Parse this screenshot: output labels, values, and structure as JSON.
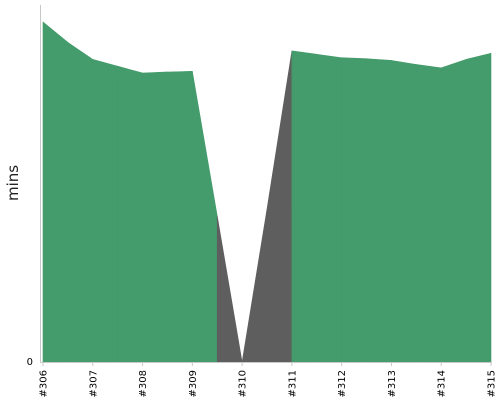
{
  "chart_data": {
    "type": "area",
    "x": [
      "#306",
      "#307",
      "#308",
      "#309",
      "#310",
      "#311",
      "#312",
      "#313",
      "#314",
      "#315"
    ],
    "series": [
      {
        "x": [
          0,
          0.5,
          1,
          1.5,
          2,
          2.5,
          3,
          3.5,
          4,
          4.5,
          5,
          5.5,
          6,
          6.5,
          7,
          7.5,
          8,
          8.5,
          9
        ],
        "values": [
          100,
          94,
          89,
          87,
          85,
          85.3,
          85.5,
          43,
          0,
          45,
          91.5,
          90.5,
          89.5,
          89.2,
          88.7,
          87.5,
          86.5,
          89,
          90.8
        ],
        "colors": [
          "#449b6c",
          "#449b6c",
          "#449b6c",
          "#449b6c",
          "#449b6c",
          "#449b6c",
          "#449b6c",
          "#5e5e5e",
          "#5e5e5e",
          "#5e5e5e",
          "#449b6c",
          "#449b6c",
          "#449b6c",
          "#449b6c",
          "#449b6c",
          "#449b6c",
          "#449b6c",
          "#449b6c"
        ]
      }
    ],
    "ylabel": "mins",
    "yticks": [
      "0"
    ],
    "ylim": [
      0,
      105
    ],
    "xlim": [
      0,
      9
    ],
    "grid": false,
    "colors": {
      "ok": "#449b6c",
      "failed": "#5e5e5e",
      "axis": "#c8c8c8"
    }
  }
}
